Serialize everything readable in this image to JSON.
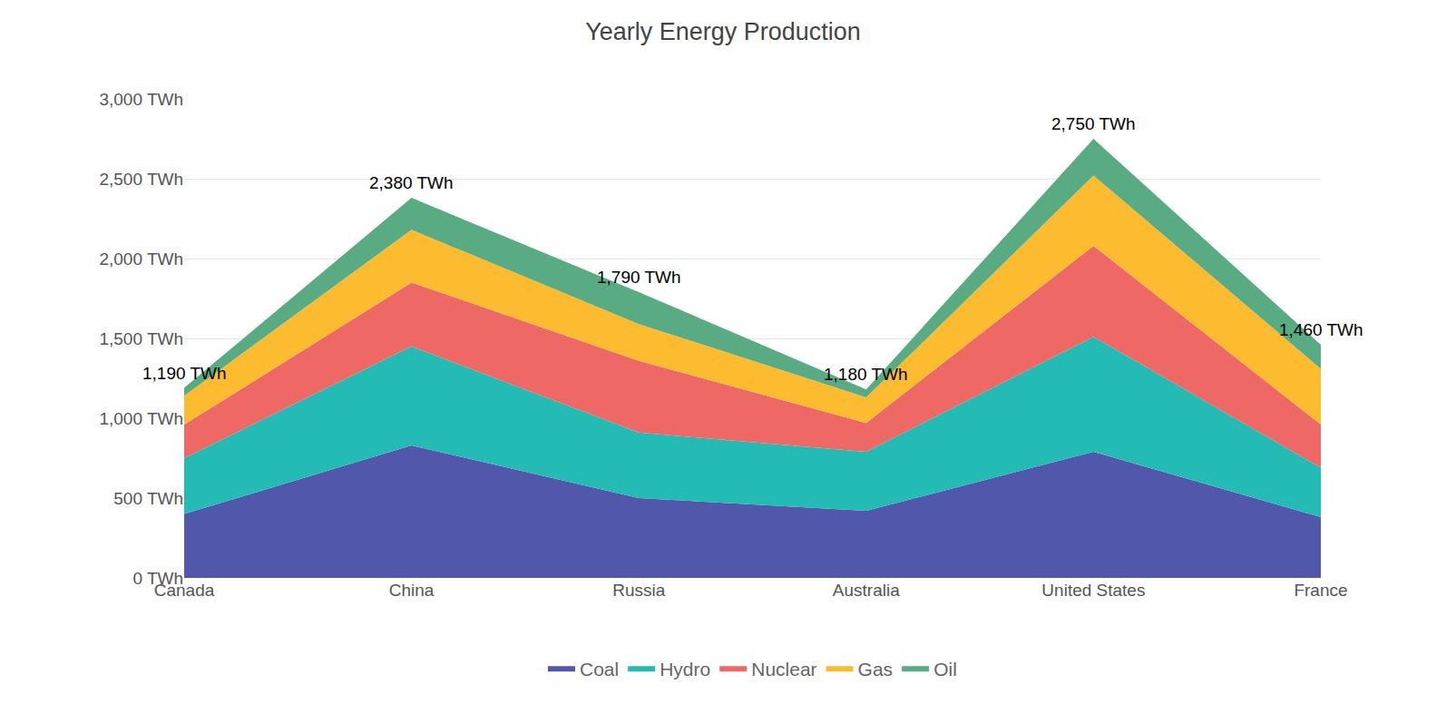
{
  "chart_data": {
    "type": "area",
    "title": "Yearly Energy Production",
    "stacked": true,
    "grid": true,
    "legend": "bottom",
    "categories": [
      "Canada",
      "China",
      "Russia",
      "Australia",
      "United States",
      "France"
    ],
    "series": [
      {
        "name": "Coal",
        "color": "#5157ab",
        "values": [
          400,
          830,
          500,
          420,
          790,
          380
        ]
      },
      {
        "name": "Hydro",
        "color": "#25bbb5",
        "values": [
          350,
          620,
          410,
          370,
          720,
          310
        ]
      },
      {
        "name": "Nuclear",
        "color": "#ee6866",
        "values": [
          210,
          400,
          450,
          180,
          570,
          270
        ]
      },
      {
        "name": "Gas",
        "color": "#fdbb30",
        "values": [
          180,
          330,
          230,
          160,
          440,
          350
        ]
      },
      {
        "name": "Oil",
        "color": "#59ab84",
        "values": [
          50,
          200,
          200,
          50,
          230,
          150
        ]
      }
    ],
    "annotations": [
      {
        "category": "Canada",
        "text": "1,190 TWh"
      },
      {
        "category": "China",
        "text": "2,380 TWh"
      },
      {
        "category": "Russia",
        "text": "1,790 TWh"
      },
      {
        "category": "Australia",
        "text": "1,180 TWh"
      },
      {
        "category": "United States",
        "text": "2,750 TWh"
      },
      {
        "category": "France",
        "text": "1,460 TWh"
      }
    ],
    "ylim": [
      0,
      3000
    ],
    "yticks": [
      {
        "value": 0,
        "label": "0 TWh"
      },
      {
        "value": 500,
        "label": "500 TWh"
      },
      {
        "value": 1000,
        "label": "1,000 TWh"
      },
      {
        "value": 1500,
        "label": "1,500 TWh"
      },
      {
        "value": 2000,
        "label": "2,000 TWh"
      },
      {
        "value": 2500,
        "label": "2,500 TWh"
      },
      {
        "value": 3000,
        "label": "3,000 TWh"
      }
    ]
  }
}
